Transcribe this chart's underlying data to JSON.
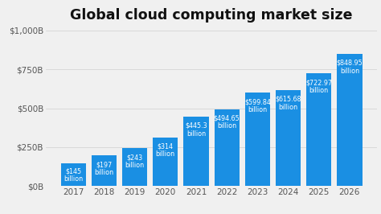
{
  "title": "Global cloud computing market size",
  "years": [
    2017,
    2018,
    2019,
    2020,
    2021,
    2022,
    2023,
    2024,
    2025,
    2026
  ],
  "values": [
    145,
    197,
    243,
    314,
    445.3,
    494.65,
    599.84,
    615.68,
    722.97,
    848.95
  ],
  "labels": [
    "$145\nbillion",
    "$197\nbillion",
    "$243\nbillion",
    "$314\nbillion",
    "$445.3\nbillion",
    "$494.65\nbillion",
    "$599.84\nbillion",
    "$615.68\nbillion",
    "$722.97\nbillion",
    "$848.95\nbillion"
  ],
  "bar_color": "#1a8fe3",
  "background_color": "#f0f0f0",
  "title_fontsize": 12.5,
  "label_fontsize": 5.8,
  "yticks": [
    0,
    250,
    500,
    750,
    1000
  ],
  "ytick_labels": [
    "$0B",
    "$250B",
    "$500B",
    "$750B",
    "$1,000B"
  ],
  "ylim": [
    0,
    1030
  ],
  "text_color": "white",
  "tick_color": "#555555",
  "tick_fontsize": 7.5
}
